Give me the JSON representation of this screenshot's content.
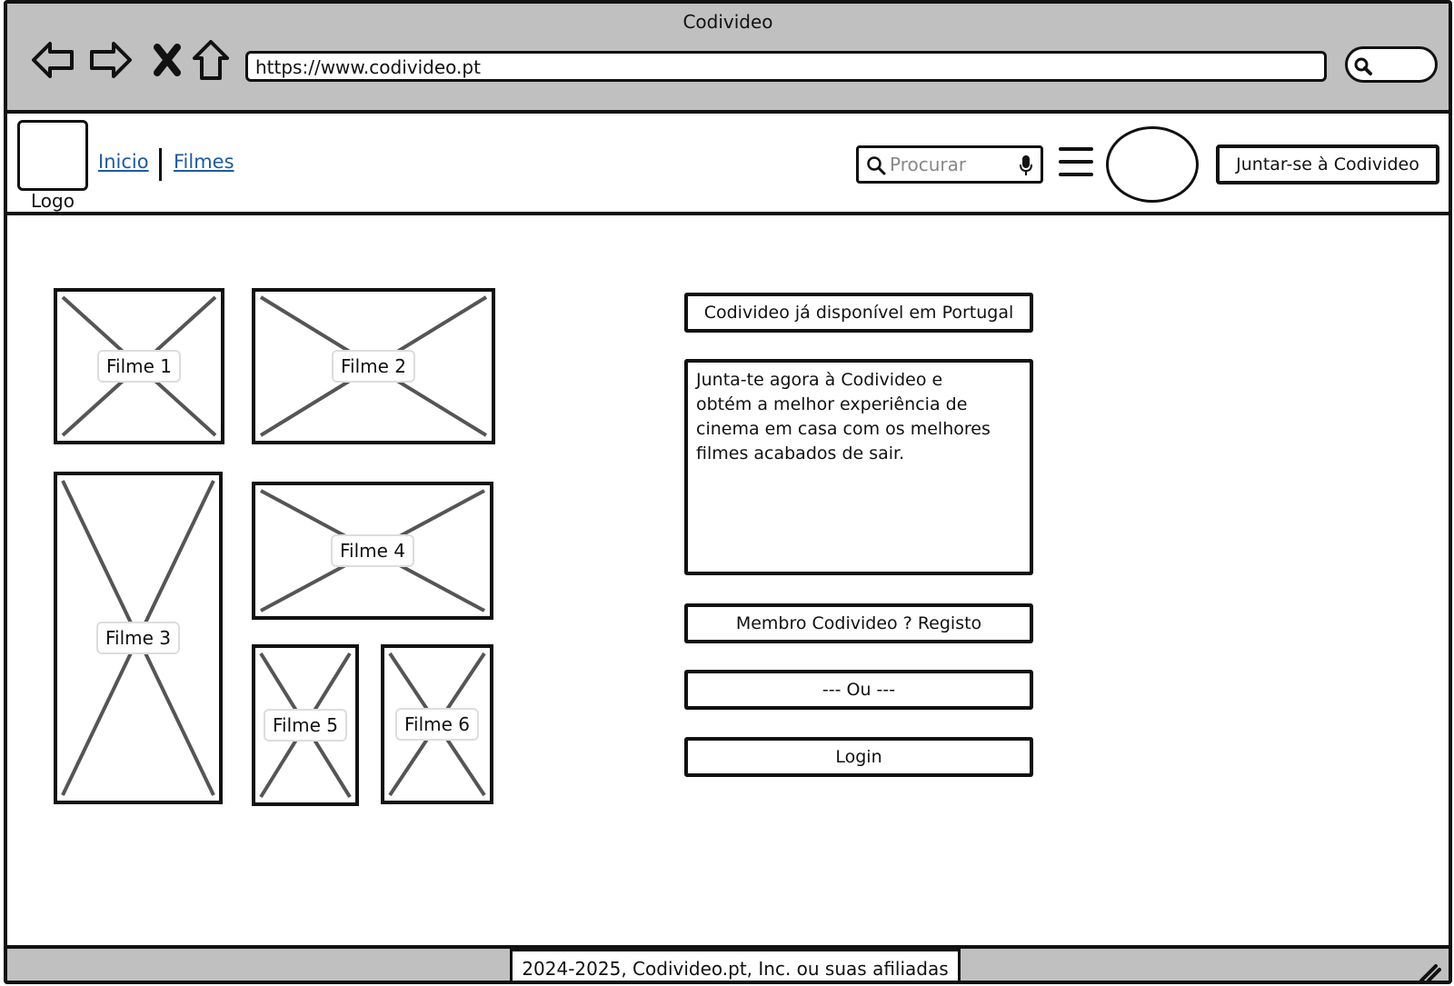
{
  "browser": {
    "title": "Codivideo",
    "url": "https://www.codivideo.pt",
    "icons": [
      "back-arrow-icon",
      "forward-arrow-icon",
      "stop-icon",
      "home-icon",
      "search-icon"
    ]
  },
  "header": {
    "logo_label": "Logo",
    "nav": [
      "Inicio",
      "Filmes"
    ],
    "search_placeholder": "Procurar",
    "join_label": "Juntar-se à Codivideo",
    "link_color": "#1e5a9e"
  },
  "movies": [
    "Filme 1",
    "Filme 2",
    "Filme 3",
    "Filme 4",
    "Filme 5",
    "Filme 6"
  ],
  "promo": {
    "headline": "Codivideo já disponível em Portugal",
    "body": "Junta-te agora à Codivideo e\nobtém a melhor experiência de\ncinema em casa com os melhores\nfilmes acabados de sair.",
    "register_label": "Membro Codivideo ? Registo",
    "or_label": "--- Ou ---",
    "login_label": "Login"
  },
  "footer": {
    "text": "2024-2025, Codivideo.pt, Inc. ou suas afiliadas"
  },
  "colors": {
    "chrome": "#c0c0c0",
    "border": "#111111",
    "placeholder_cross": "#555555"
  }
}
